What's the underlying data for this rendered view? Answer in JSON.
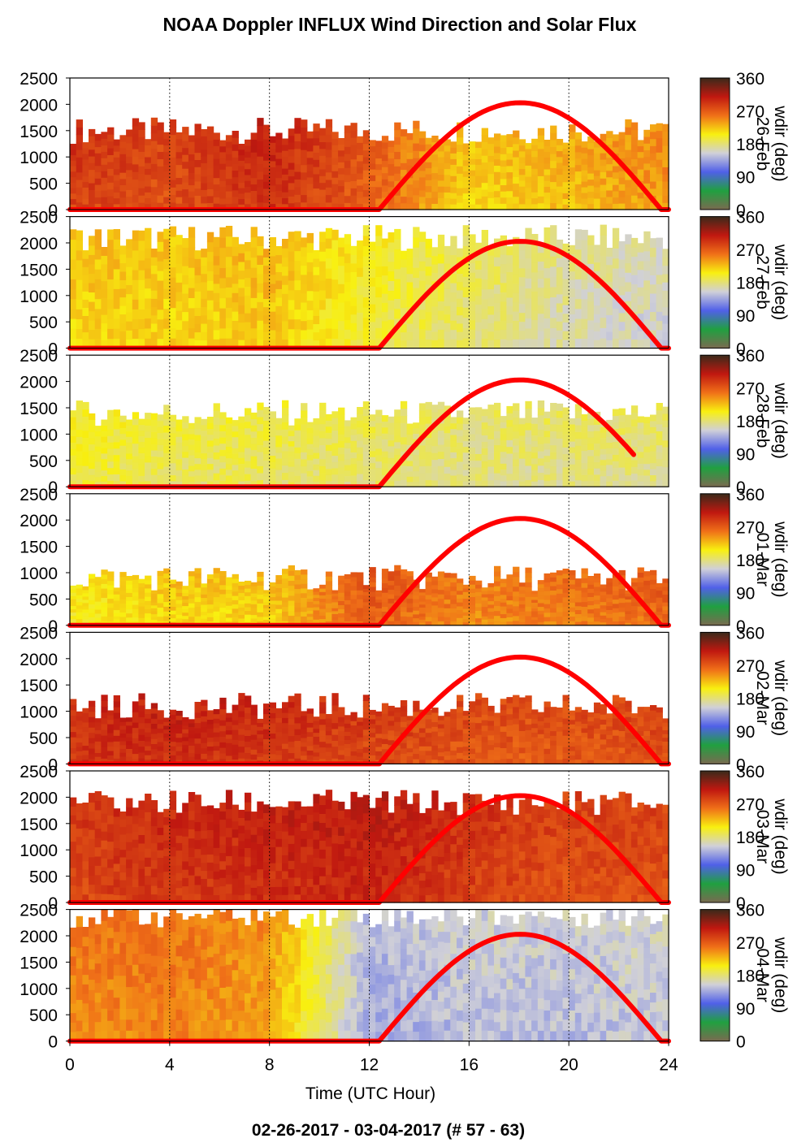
{
  "title": "NOAA Doppler INFLUX Wind Direction and Solar Flux",
  "footer": "02-26-2017 - 03-04-2017   (# 57 - 63)",
  "xlabel": "Time (UTC Hour)",
  "colorbar": {
    "label": "wdir (deg)",
    "ticks": [
      "360",
      "270",
      "180",
      "90",
      "0"
    ],
    "stops": [
      "#3a2a1a",
      "#c01810",
      "#f07018",
      "#f8f010",
      "#d0d0d8",
      "#5060e8",
      "#20a040",
      "#7a6a50"
    ]
  },
  "chart_data": {
    "type": "heatmap",
    "title": "NOAA Doppler INFLUX Wind Direction and Solar Flux",
    "xlabel": "Time (UTC Hour)",
    "xlim": [
      0,
      24
    ],
    "xticks": [
      "0",
      "4",
      "8",
      "12",
      "16",
      "20",
      "24"
    ],
    "ylim": [
      0,
      2500
    ],
    "yticks": [
      "2500",
      "2000",
      "1500",
      "1000",
      "500",
      "0"
    ],
    "grid": "vertical dotted lines at 4-hour intervals",
    "color_variable": "wdir (deg)",
    "color_range": [
      0,
      360
    ],
    "overlay": "solar flux curve, red line",
    "panels": [
      {
        "day": "26-Feb",
        "sun_start": 12.4,
        "sun_end": 23.7,
        "sun_peak": 2030,
        "data_top": 1500,
        "wind": [
          [
            0,
            290
          ],
          [
            4,
            280
          ],
          [
            8,
            300
          ],
          [
            12,
            270
          ],
          [
            16,
            220
          ],
          [
            20,
            230
          ],
          [
            24,
            245
          ]
        ]
      },
      {
        "day": "27-Feb",
        "sun_start": 12.4,
        "sun_end": 23.7,
        "sun_peak": 2030,
        "data_top": 2100,
        "wind": [
          [
            0,
            220
          ],
          [
            4,
            220
          ],
          [
            8,
            225
          ],
          [
            12,
            200
          ],
          [
            16,
            185
          ],
          [
            20,
            170
          ],
          [
            24,
            160
          ]
        ]
      },
      {
        "day": "28-Feb",
        "sun_start": 12.4,
        "sun_end": 22.6,
        "sun_peak": 2030,
        "data_top": 1400,
        "wind": [
          [
            0,
            200
          ],
          [
            4,
            190
          ],
          [
            8,
            190
          ],
          [
            12,
            185
          ],
          [
            16,
            180
          ],
          [
            20,
            180
          ],
          [
            24,
            180
          ]
        ]
      },
      {
        "day": "01-Mar",
        "sun_start": 12.4,
        "sun_end": 23.7,
        "sun_peak": 2030,
        "data_top": 900,
        "wind": [
          [
            0,
            205
          ],
          [
            4,
            220
          ],
          [
            8,
            220
          ],
          [
            12,
            270
          ],
          [
            16,
            250
          ],
          [
            20,
            255
          ],
          [
            24,
            265
          ]
        ]
      },
      {
        "day": "02-Mar",
        "sun_start": 12.4,
        "sun_end": 23.7,
        "sun_peak": 2030,
        "data_top": 1100,
        "wind": [
          [
            0,
            295
          ],
          [
            4,
            300
          ],
          [
            8,
            295
          ],
          [
            12,
            285
          ],
          [
            16,
            275
          ],
          [
            20,
            275
          ],
          [
            24,
            280
          ]
        ]
      },
      {
        "day": "03-Mar",
        "sun_start": 12.4,
        "sun_end": 23.7,
        "sun_peak": 2030,
        "data_top": 1900,
        "wind": [
          [
            0,
            285
          ],
          [
            4,
            295
          ],
          [
            8,
            300
          ],
          [
            12,
            305
          ],
          [
            16,
            290
          ],
          [
            20,
            280
          ],
          [
            24,
            280
          ]
        ]
      },
      {
        "day": "04-Mar",
        "sun_start": 12.4,
        "sun_end": 23.7,
        "sun_peak": 2030,
        "data_top": 2400,
        "wind": [
          [
            0,
            250
          ],
          [
            4,
            255
          ],
          [
            8,
            240
          ],
          [
            12,
            140
          ],
          [
            16,
            150
          ],
          [
            20,
            150
          ],
          [
            24,
            155
          ]
        ]
      }
    ]
  }
}
